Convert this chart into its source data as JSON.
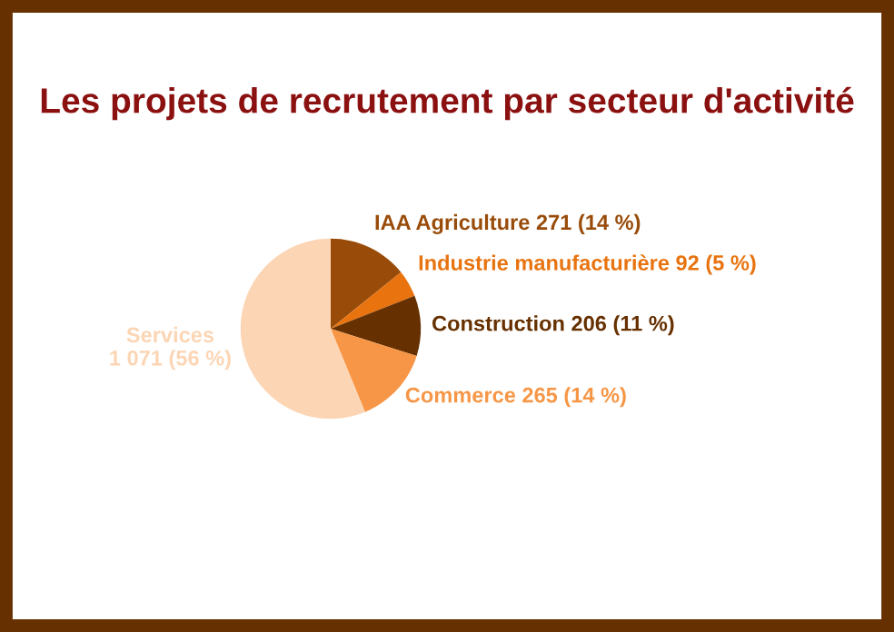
{
  "chart_data": {
    "type": "pie",
    "title": "Les projets de recrutement par secteur d'activité",
    "categories": [
      "IAA Agriculture",
      "Industrie manufacturière",
      "Construction",
      "Commerce",
      "Services"
    ],
    "values": [
      271,
      92,
      206,
      265,
      1071
    ],
    "value_labels": [
      "271 (14 %)",
      "92 (5 %)",
      "206 (11 %)",
      "265 (14 %)",
      "1 071 (56 %)"
    ],
    "colors": [
      "#994c0a",
      "#e8730f",
      "#663000",
      "#f79646",
      "#fcd5b4"
    ],
    "legend": false
  }
}
